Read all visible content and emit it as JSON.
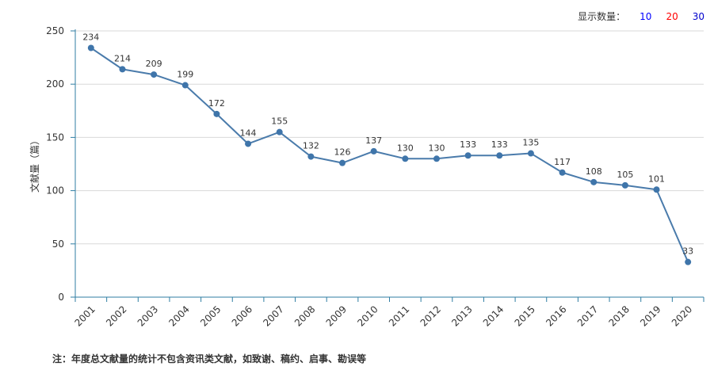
{
  "display_count": {
    "label": "显示数量：",
    "options": [
      {
        "value": "10",
        "color": "#0000ff"
      },
      {
        "value": "20",
        "color": "#ff0000"
      },
      {
        "value": "30",
        "color": "#0000cc"
      }
    ]
  },
  "footnote": "注：年度总文献量的统计不包含资讯类文献，如致谢、稿约、启事、勘误等",
  "colors": {
    "line": "#4a7bab",
    "point": "#3f75aa",
    "axis": "#2f7ea3",
    "grid": "#d9d9d9",
    "label": "#333333"
  },
  "chart_data": {
    "type": "line",
    "title": "",
    "xlabel": "",
    "ylabel": "文献量（篇）",
    "ylim": [
      0,
      250
    ],
    "yticks": [
      0,
      50,
      100,
      150,
      200,
      250
    ],
    "grid": true,
    "x": [
      "2001",
      "2002",
      "2003",
      "2004",
      "2005",
      "2006",
      "2007",
      "2008",
      "2009",
      "2010",
      "2011",
      "2012",
      "2013",
      "2014",
      "2015",
      "2016",
      "2017",
      "2018",
      "2019",
      "2020"
    ],
    "series": [
      {
        "values": [
          234,
          214,
          209,
          199,
          172,
          144,
          155,
          132,
          126,
          137,
          130,
          130,
          133,
          133,
          135,
          117,
          108,
          105,
          101,
          33
        ],
        "data_labels": [
          "234",
          "214",
          "209",
          "199",
          "172",
          "144",
          "155",
          "132",
          "126",
          "137",
          "130",
          "130",
          "133",
          "133",
          "135",
          "117",
          "108",
          "105",
          "101",
          "33"
        ]
      }
    ]
  }
}
